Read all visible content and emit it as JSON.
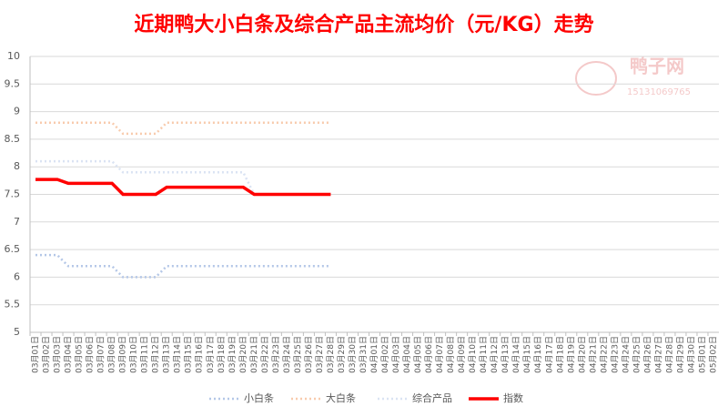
{
  "chart_data": {
    "type": "line",
    "title": "近期鸭大小白条及综合产品主流均价（元/KG）走势",
    "watermark": {
      "brand": "鸭子网",
      "phone": "15131069765"
    },
    "categories": [
      "03月01日",
      "03月02日",
      "03月03日",
      "03月04日",
      "03月05日",
      "03月06日",
      "03月07日",
      "03月08日",
      "03月09日",
      "03月10日",
      "03月11日",
      "03月12日",
      "03月13日",
      "03月14日",
      "03月15日",
      "03月16日",
      "03月17日",
      "03月18日",
      "03月19日",
      "03月20日",
      "03月21日",
      "03月22日",
      "03月23日",
      "03月24日",
      "03月25日",
      "03月26日",
      "03月27日",
      "03月28日",
      "03月29日",
      "03月30日",
      "03月31日",
      "04月01日",
      "04月02日",
      "04月03日",
      "04月04日",
      "04月05日",
      "04月06日",
      "04月07日",
      "04月08日",
      "04月09日",
      "04月10日",
      "04月11日",
      "04月12日",
      "04月13日",
      "04月14日",
      "04月15日",
      "04月16日",
      "04月17日",
      "04月18日",
      "04月19日",
      "04月20日",
      "04月21日",
      "04月22日",
      "04月23日",
      "04月24日",
      "04月25日",
      "04月26日",
      "04月27日",
      "04月28日",
      "04月29日",
      "04月30日",
      "05月01日",
      "05月02日"
    ],
    "series": [
      {
        "name": "小白条",
        "color": "#b4c7e7",
        "dash": true,
        "values": [
          6.4,
          6.4,
          6.4,
          6.2,
          6.2,
          6.2,
          6.2,
          6.2,
          6.0,
          6.0,
          6.0,
          6.0,
          6.2,
          6.2,
          6.2,
          6.2,
          6.2,
          6.2,
          6.2,
          6.2,
          6.2,
          6.2,
          6.2,
          6.2,
          6.2,
          6.2,
          6.2,
          6.2,
          null,
          null,
          null,
          null,
          null,
          null,
          null,
          null,
          null,
          null,
          null,
          null,
          null,
          null,
          null,
          null,
          null,
          null,
          null,
          null,
          null,
          null,
          null,
          null,
          null,
          null,
          null,
          null,
          null,
          null,
          null,
          null,
          null,
          null,
          null
        ]
      },
      {
        "name": "大白条",
        "color": "#f8cbad",
        "dash": true,
        "values": [
          8.8,
          8.8,
          8.8,
          8.8,
          8.8,
          8.8,
          8.8,
          8.8,
          8.6,
          8.6,
          8.6,
          8.6,
          8.8,
          8.8,
          8.8,
          8.8,
          8.8,
          8.8,
          8.8,
          8.8,
          8.8,
          8.8,
          8.8,
          8.8,
          8.8,
          8.8,
          8.8,
          8.8,
          null,
          null,
          null,
          null,
          null,
          null,
          null,
          null,
          null,
          null,
          null,
          null,
          null,
          null,
          null,
          null,
          null,
          null,
          null,
          null,
          null,
          null,
          null,
          null,
          null,
          null,
          null,
          null,
          null,
          null,
          null,
          null,
          null,
          null,
          null
        ]
      },
      {
        "name": "综合产品",
        "color": "#dae3f3",
        "dash": true,
        "values": [
          8.1,
          8.1,
          8.1,
          8.1,
          8.1,
          8.1,
          8.1,
          8.1,
          7.9,
          7.9,
          7.9,
          7.9,
          7.9,
          7.9,
          7.9,
          7.9,
          7.9,
          7.9,
          7.9,
          7.9,
          7.5,
          7.5,
          7.5,
          7.5,
          7.5,
          7.5,
          7.5,
          7.5,
          null,
          null,
          null,
          null,
          null,
          null,
          null,
          null,
          null,
          null,
          null,
          null,
          null,
          null,
          null,
          null,
          null,
          null,
          null,
          null,
          null,
          null,
          null,
          null,
          null,
          null,
          null,
          null,
          null,
          null,
          null,
          null,
          null,
          null,
          null
        ]
      },
      {
        "name": "指数",
        "color": "#ff0000",
        "dash": false,
        "values": [
          7.77,
          7.77,
          7.77,
          7.7,
          7.7,
          7.7,
          7.7,
          7.7,
          7.5,
          7.5,
          7.5,
          7.5,
          7.63,
          7.63,
          7.63,
          7.63,
          7.63,
          7.63,
          7.63,
          7.63,
          7.5,
          7.5,
          7.5,
          7.5,
          7.5,
          7.5,
          7.5,
          7.5,
          null,
          null,
          null,
          null,
          null,
          null,
          null,
          null,
          null,
          null,
          null,
          null,
          null,
          null,
          null,
          null,
          null,
          null,
          null,
          null,
          null,
          null,
          null,
          null,
          null,
          null,
          null,
          null,
          null,
          null,
          null,
          null,
          null,
          null,
          null
        ]
      }
    ],
    "ylim": [
      5,
      10
    ],
    "yticks": [
      5,
      5.5,
      6,
      6.5,
      7,
      7.5,
      8,
      8.5,
      9,
      9.5,
      10
    ],
    "grid": true,
    "legend": "bottom"
  }
}
